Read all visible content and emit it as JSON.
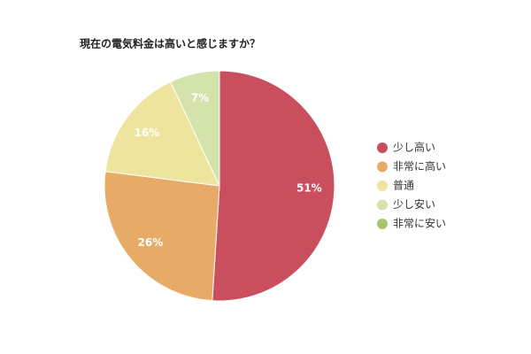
{
  "chart_data": {
    "type": "pie",
    "title": "現在の電気料金は高いと感じますか？",
    "categories": [
      "少し高い",
      "非常に高い",
      "普通",
      "少し安い",
      "非常に安い"
    ],
    "values": [
      51,
      26,
      16,
      7,
      0
    ],
    "value_labels": [
      "51%",
      "26%",
      "16%",
      "7%",
      null
    ],
    "colors": [
      "#c94f5f",
      "#e8ab67",
      "#ede59e",
      "#d4e3ab",
      "#a7c46a"
    ],
    "legend": "right"
  }
}
